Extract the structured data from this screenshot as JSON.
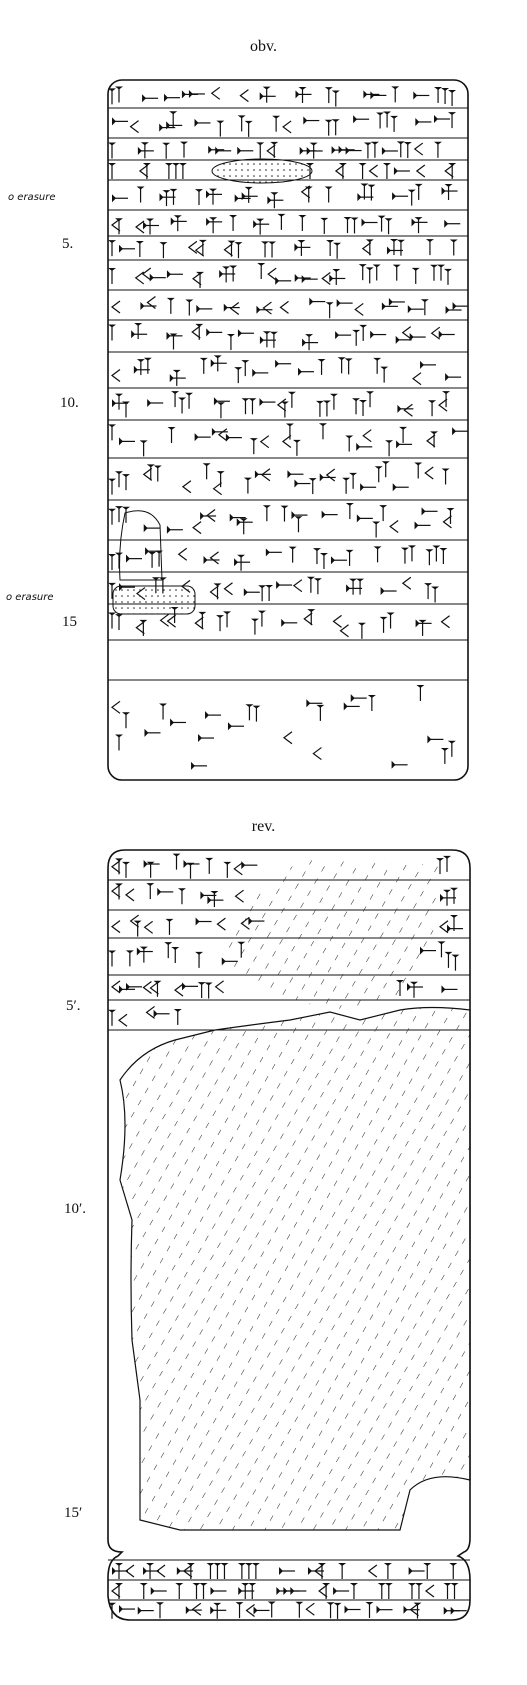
{
  "obverse": {
    "title": "obv.",
    "line_numbers": [
      "5.",
      "10.",
      "15"
    ],
    "notes": [
      "o erasure",
      "o erasure"
    ]
  },
  "reverse": {
    "title": "rev.",
    "line_numbers": [
      "5′.",
      "10′.",
      "15′"
    ]
  }
}
